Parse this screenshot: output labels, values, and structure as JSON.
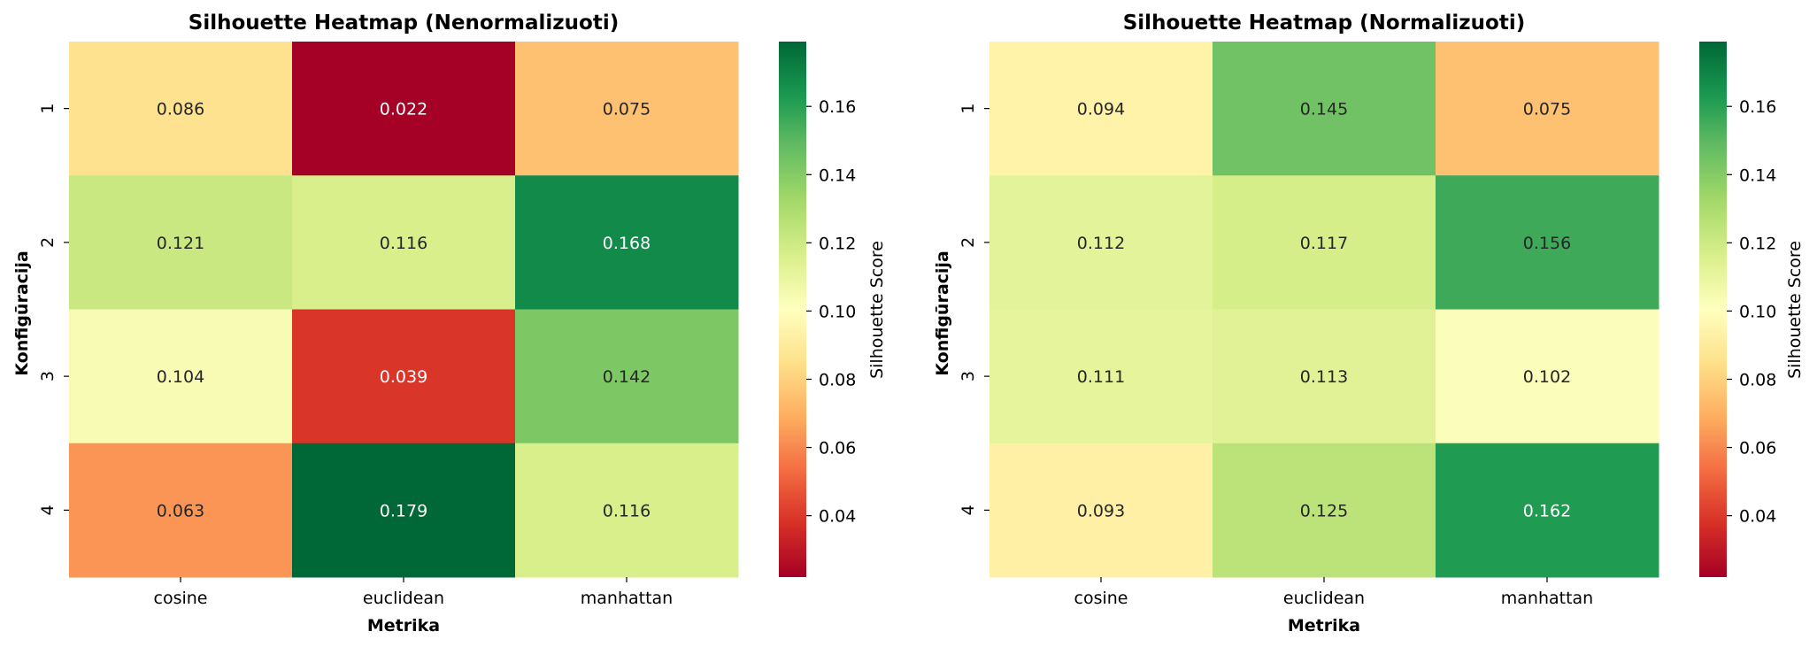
{
  "chart_data": [
    {
      "type": "heatmap",
      "title": "Silhouette Heatmap (Nenormalizuoti)",
      "xlabel": "Metrika",
      "ylabel": "Konfigūracija",
      "x_categories": [
        "cosine",
        "euclidean",
        "manhattan"
      ],
      "y_categories": [
        "1",
        "2",
        "3",
        "4"
      ],
      "values": [
        [
          0.086,
          0.022,
          0.075
        ],
        [
          0.121,
          0.116,
          0.168
        ],
        [
          0.104,
          0.039,
          0.142
        ],
        [
          0.063,
          0.179,
          0.116
        ]
      ],
      "colorbar": {
        "label": "Silhouette Score",
        "range": [
          0.022,
          0.179
        ],
        "ticks": [
          "0.04",
          "0.06",
          "0.08",
          "0.10",
          "0.12",
          "0.14",
          "0.16"
        ],
        "colormap": "RdYlGn"
      }
    },
    {
      "type": "heatmap",
      "title": "Silhouette Heatmap (Normalizuoti)",
      "xlabel": "Metrika",
      "ylabel": "Konfigūracija",
      "x_categories": [
        "cosine",
        "euclidean",
        "manhattan"
      ],
      "y_categories": [
        "1",
        "2",
        "3",
        "4"
      ],
      "values": [
        [
          0.094,
          0.145,
          0.075
        ],
        [
          0.112,
          0.117,
          0.156
        ],
        [
          0.111,
          0.113,
          0.102
        ],
        [
          0.093,
          0.125,
          0.162
        ]
      ],
      "colorbar": {
        "label": "Silhouette Score",
        "range": [
          0.022,
          0.179
        ],
        "ticks": [
          "0.04",
          "0.06",
          "0.08",
          "0.10",
          "0.12",
          "0.14",
          "0.16"
        ],
        "colormap": "RdYlGn"
      }
    }
  ]
}
